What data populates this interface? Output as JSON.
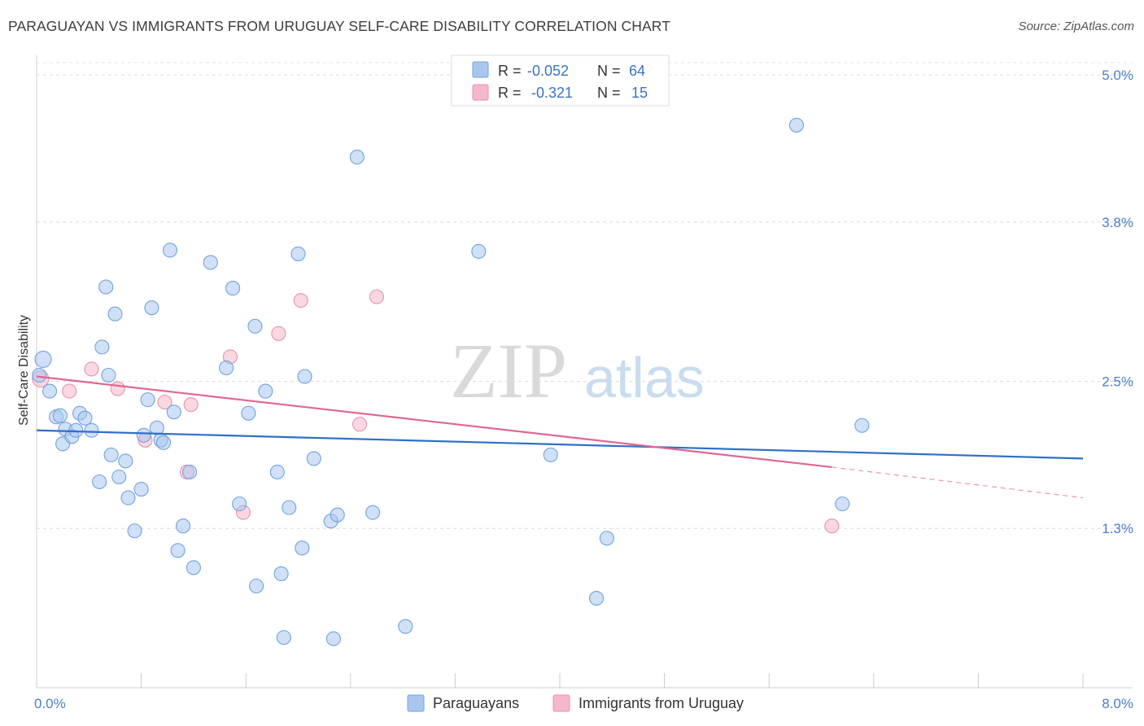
{
  "header": {
    "title": "PARAGUAYAN VS IMMIGRANTS FROM URUGUAY SELF-CARE DISABILITY CORRELATION CHART",
    "source": "Source: ZipAtlas.com"
  },
  "watermark": {
    "zip": "ZIP",
    "atlas": "atlas"
  },
  "legend": {
    "rows": [
      {
        "r_label": "R =",
        "r_value": "-0.052",
        "n_label": "N =",
        "n_value": "64",
        "color": "#a9c7ee"
      },
      {
        "r_label": "R =",
        "r_value": "-0.321",
        "n_label": "N =",
        "n_value": "15",
        "color": "#f5b8cb"
      }
    ]
  },
  "bottom_legend": [
    {
      "label": "Paraguayans",
      "color": "#a9c7ee"
    },
    {
      "label": "Immigrants from Uruguay",
      "color": "#f5b8cb"
    }
  ],
  "chart_data": {
    "type": "scatter",
    "title": "PARAGUAYAN VS IMMIGRANTS FROM URUGUAY SELF-CARE DISABILITY CORRELATION CHART",
    "xlabel": "",
    "ylabel": "Self-Care Disability",
    "xlim": [
      0,
      8.0
    ],
    "ylim": [
      0.0,
      5.1
    ],
    "x_tick_labels": [
      "0.0%",
      "8.0%"
    ],
    "y_ticks": [
      1.3,
      2.5,
      3.8,
      5.0
    ],
    "y_tick_labels": [
      "1.3%",
      "2.5%",
      "3.8%",
      "5.0%"
    ],
    "grid": "horizontal-dashed",
    "legend_position": "top-center",
    "series": [
      {
        "name": "Paraguayans",
        "color": "#6fa3e0",
        "fill": "#a9c7ee",
        "points": [
          [
            0.05,
            2.68
          ],
          [
            0.1,
            2.42
          ],
          [
            0.15,
            2.21
          ],
          [
            0.18,
            2.22
          ],
          [
            0.2,
            1.99
          ],
          [
            0.22,
            2.11
          ],
          [
            0.27,
            2.05
          ],
          [
            0.3,
            2.1
          ],
          [
            0.33,
            2.24
          ],
          [
            0.37,
            2.2
          ],
          [
            0.42,
            2.1
          ],
          [
            0.48,
            1.68
          ],
          [
            0.5,
            2.78
          ],
          [
            0.53,
            3.27
          ],
          [
            0.55,
            2.55
          ],
          [
            0.57,
            1.9
          ],
          [
            0.6,
            3.05
          ],
          [
            0.63,
            1.72
          ],
          [
            0.68,
            1.85
          ],
          [
            0.7,
            1.55
          ],
          [
            0.75,
            1.28
          ],
          [
            0.8,
            1.62
          ],
          [
            0.82,
            2.06
          ],
          [
            0.85,
            2.35
          ],
          [
            0.88,
            3.1
          ],
          [
            0.92,
            2.12
          ],
          [
            0.95,
            2.02
          ],
          [
            0.97,
            2.0
          ],
          [
            1.02,
            3.57
          ],
          [
            1.05,
            2.25
          ],
          [
            1.08,
            1.12
          ],
          [
            1.12,
            1.32
          ],
          [
            1.17,
            1.76
          ],
          [
            1.2,
            0.98
          ],
          [
            1.33,
            3.47
          ],
          [
            1.45,
            2.61
          ],
          [
            1.5,
            3.26
          ],
          [
            1.55,
            1.5
          ],
          [
            1.62,
            2.24
          ],
          [
            1.67,
            2.95
          ],
          [
            1.68,
            0.83
          ],
          [
            1.75,
            2.42
          ],
          [
            1.84,
            1.76
          ],
          [
            1.87,
            0.93
          ],
          [
            1.89,
            0.41
          ],
          [
            1.93,
            1.47
          ],
          [
            2.0,
            3.54
          ],
          [
            2.03,
            1.14
          ],
          [
            2.05,
            2.54
          ],
          [
            2.12,
            1.87
          ],
          [
            2.25,
            1.36
          ],
          [
            2.27,
            0.4
          ],
          [
            2.3,
            1.41
          ],
          [
            2.45,
            4.33
          ],
          [
            2.57,
            1.43
          ],
          [
            2.82,
            0.5
          ],
          [
            3.38,
            3.56
          ],
          [
            3.93,
            1.9
          ],
          [
            4.28,
            0.73
          ],
          [
            4.36,
            1.22
          ],
          [
            5.81,
            4.59
          ],
          [
            6.16,
            1.5
          ],
          [
            6.31,
            2.14
          ],
          [
            0.02,
            2.55
          ]
        ]
      },
      {
        "name": "Immigrants from Uruguay",
        "color": "#e891ad",
        "fill": "#f5b8cb",
        "points": [
          [
            0.03,
            2.52
          ],
          [
            0.25,
            2.42
          ],
          [
            0.42,
            2.6
          ],
          [
            0.62,
            2.44
          ],
          [
            0.83,
            2.02
          ],
          [
            0.98,
            2.33
          ],
          [
            1.15,
            1.76
          ],
          [
            1.18,
            2.31
          ],
          [
            1.48,
            2.7
          ],
          [
            1.58,
            1.43
          ],
          [
            1.85,
            2.89
          ],
          [
            2.02,
            3.16
          ],
          [
            2.47,
            2.15
          ],
          [
            2.6,
            3.19
          ],
          [
            6.08,
            1.32
          ]
        ]
      }
    ],
    "trend_lines": [
      {
        "series": "Paraguayans",
        "color": "#2e6fc9",
        "from": [
          0.0,
          2.1
        ],
        "to": [
          8.0,
          1.87
        ]
      },
      {
        "series": "Immigrants from Uruguay",
        "color": "#e06792",
        "from": [
          0.0,
          2.54
        ],
        "to": [
          6.08,
          1.8
        ],
        "dashed_to": [
          8.0,
          1.55
        ]
      }
    ]
  }
}
